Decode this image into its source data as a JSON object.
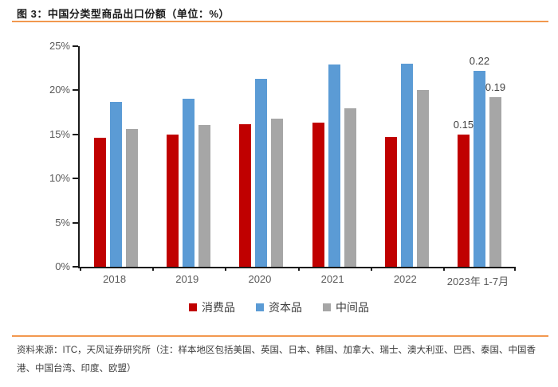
{
  "title": "图 3：中国分类型商品出口份额（单位：%）",
  "colors": {
    "accent_orange": "#F2984F",
    "axis": "#1a1a1a",
    "tick_label": "#595959",
    "data_label": "#404040"
  },
  "chart_data": {
    "type": "bar",
    "title": "图 3：中国分类型商品出口份额（单位：%）",
    "categories": [
      "2018",
      "2019",
      "2020",
      "2021",
      "2022",
      "2023年 1-7月"
    ],
    "series": [
      {
        "name": "消费品",
        "color": "#C00000",
        "values": [
          14.6,
          15.0,
          16.2,
          16.3,
          14.7,
          15.0
        ]
      },
      {
        "name": "资本品",
        "color": "#5B9BD5",
        "values": [
          18.7,
          19.0,
          21.3,
          22.9,
          23.0,
          22.2
        ]
      },
      {
        "name": "中间品",
        "color": "#A6A6A6",
        "values": [
          15.6,
          16.1,
          16.8,
          18.0,
          20.0,
          19.2
        ]
      }
    ],
    "data_labels": {
      "category": "2023年 1-7月",
      "values": [
        "0.15",
        "0.22",
        "0.19"
      ]
    },
    "xlabel": "",
    "ylabel": "",
    "ylim": [
      0,
      25
    ],
    "ytick_step": 5,
    "ytick_labels": [
      "0%",
      "5%",
      "10%",
      "15%",
      "20%",
      "25%"
    ],
    "grid": false,
    "legend_position": "bottom"
  },
  "footer": {
    "source_text": "资料来源：ITC，天风证券研究所（注：样本地区包括美国、英国、日本、韩国、加拿大、瑞士、澳大利亚、巴西、泰国、中国香港、中国台湾、印度、欧盟）"
  }
}
